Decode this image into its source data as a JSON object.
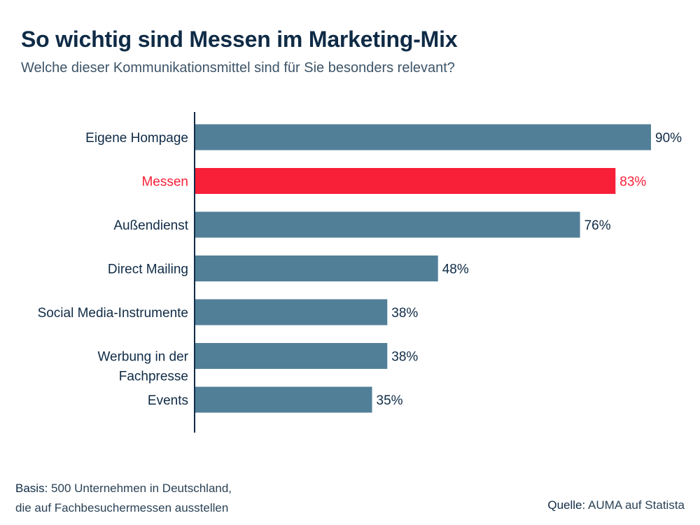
{
  "title": "So wichtig sind Messen im Marketing-Mix",
  "subtitle": "Welche dieser Kommunikationsmittel sind für Sie besonders relevant?",
  "chart_data": {
    "type": "bar",
    "orientation": "horizontal",
    "categories": [
      "Eigene Hompage",
      "Messen",
      "Außendienst",
      "Direct Mailing",
      "Social Media-Instrumente",
      "Werbung in der Fachpresse",
      "Events"
    ],
    "values": [
      90,
      83,
      76,
      48,
      38,
      38,
      35
    ],
    "value_labels": [
      "90%",
      "83%",
      "76%",
      "48%",
      "38%",
      "38%",
      "35%"
    ],
    "highlight_category": "Messen",
    "xlim": [
      0,
      90
    ],
    "grid": false,
    "colors": {
      "bar": "#527f98",
      "highlight": "#f81f38",
      "text": "#0f2b46",
      "axis": "#0f2b46"
    }
  },
  "footer": {
    "basis_label": "Basis:",
    "basis_text": "500 Unternehmen in Deutschland,",
    "basis_text_2": "die auf Fachbesuchermessen ausstellen",
    "source_label": "Quelle:",
    "source_text": "AUMA auf  Statista"
  }
}
